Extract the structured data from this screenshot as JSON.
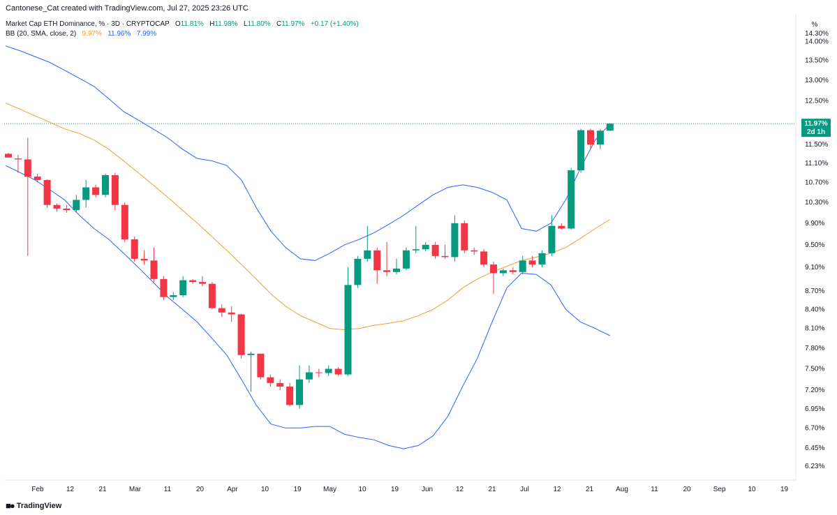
{
  "header": {
    "credit": "Cantonese_Cat created with TradingView.com, Jul 27, 2025 23:26 UTC",
    "symbol": "Market Cap ETH Dominance, % · 3D · CRYPTOCAP",
    "o_label": "O",
    "o_value": "11.81%",
    "h_label": "H",
    "h_value": "11.98%",
    "l_label": "L",
    "l_value": "11.80%",
    "c_label": "C",
    "c_value": "11.97%",
    "change": "+0.17 (+1.40%)",
    "indicator": "BB (20, SMA, close, 2)",
    "bb_mid": "9.97%",
    "bb_upper": "11.96%",
    "bb_lower": "7.99%"
  },
  "scale_button": "%",
  "footer": {
    "logo_icon": "tradingview-logo-icon",
    "logo_text": "TradingView"
  },
  "colors": {
    "up": "#089981",
    "down": "#f23645",
    "basis": "#f59d2a",
    "bands": "#2962ff"
  },
  "chart_data": {
    "type": "candlestick",
    "y_axis": {
      "ticks": [
        "14.30%",
        "14.00%",
        "13.50%",
        "13.00%",
        "12.50%",
        "11.50%",
        "11.10%",
        "10.70%",
        "10.30%",
        "9.90%",
        "9.50%",
        "9.10%",
        "8.70%",
        "8.40%",
        "8.10%",
        "7.80%",
        "7.50%",
        "7.20%",
        "6.95%",
        "6.70%",
        "6.45%",
        "6.23%"
      ],
      "scale": "log",
      "range": [
        6.1,
        14.6
      ]
    },
    "x_axis": {
      "ticks": [
        "Feb",
        "12",
        "21",
        "Mar",
        "11",
        "20",
        "Apr",
        "10",
        "19",
        "May",
        "10",
        "19",
        "Jun",
        "12",
        "21",
        "Jul",
        "12",
        "21",
        "Aug",
        "11",
        "20",
        "Sep",
        "10",
        "19"
      ]
    },
    "last_price": {
      "value": 11.97,
      "label": "11.97%",
      "countdown": "2d 1h"
    },
    "candles": [
      {
        "o": 11.3,
        "h": 11.32,
        "l": 11.22,
        "c": 11.22
      },
      {
        "o": 11.2,
        "h": 11.28,
        "l": 10.9,
        "c": 11.18
      },
      {
        "o": 11.18,
        "h": 11.65,
        "l": 9.3,
        "c": 10.82
      },
      {
        "o": 10.82,
        "h": 10.88,
        "l": 10.7,
        "c": 10.75
      },
      {
        "o": 10.75,
        "h": 10.76,
        "l": 10.2,
        "c": 10.25
      },
      {
        "o": 10.25,
        "h": 10.28,
        "l": 10.12,
        "c": 10.18
      },
      {
        "o": 10.18,
        "h": 10.25,
        "l": 10.1,
        "c": 10.15
      },
      {
        "o": 10.15,
        "h": 10.45,
        "l": 10.1,
        "c": 10.35
      },
      {
        "o": 10.35,
        "h": 10.75,
        "l": 10.2,
        "c": 10.6
      },
      {
        "o": 10.6,
        "h": 10.65,
        "l": 10.4,
        "c": 10.45
      },
      {
        "o": 10.45,
        "h": 10.88,
        "l": 10.4,
        "c": 10.85
      },
      {
        "o": 10.85,
        "h": 10.9,
        "l": 10.15,
        "c": 10.25
      },
      {
        "o": 10.25,
        "h": 10.3,
        "l": 9.55,
        "c": 9.6
      },
      {
        "o": 9.6,
        "h": 9.65,
        "l": 9.2,
        "c": 9.25
      },
      {
        "o": 9.25,
        "h": 9.4,
        "l": 9.15,
        "c": 9.22
      },
      {
        "o": 9.22,
        "h": 9.45,
        "l": 8.85,
        "c": 8.9
      },
      {
        "o": 8.9,
        "h": 8.95,
        "l": 8.55,
        "c": 8.6
      },
      {
        "o": 8.6,
        "h": 8.68,
        "l": 8.55,
        "c": 8.63
      },
      {
        "o": 8.63,
        "h": 8.95,
        "l": 8.6,
        "c": 8.88
      },
      {
        "o": 8.88,
        "h": 8.9,
        "l": 8.82,
        "c": 8.85
      },
      {
        "o": 8.85,
        "h": 8.95,
        "l": 8.78,
        "c": 8.82
      },
      {
        "o": 8.82,
        "h": 8.85,
        "l": 8.4,
        "c": 8.42
      },
      {
        "o": 8.42,
        "h": 8.48,
        "l": 8.28,
        "c": 8.35
      },
      {
        "o": 8.35,
        "h": 8.45,
        "l": 8.2,
        "c": 8.32
      },
      {
        "o": 8.32,
        "h": 8.33,
        "l": 7.65,
        "c": 7.7
      },
      {
        "o": 7.7,
        "h": 7.75,
        "l": 7.18,
        "c": 7.72
      },
      {
        "o": 7.72,
        "h": 7.72,
        "l": 7.35,
        "c": 7.38
      },
      {
        "o": 7.38,
        "h": 7.42,
        "l": 7.25,
        "c": 7.3
      },
      {
        "o": 7.3,
        "h": 7.35,
        "l": 7.2,
        "c": 7.25
      },
      {
        "o": 7.25,
        "h": 7.3,
        "l": 6.98,
        "c": 7.0
      },
      {
        "o": 7.0,
        "h": 7.55,
        "l": 6.95,
        "c": 7.35
      },
      {
        "o": 7.35,
        "h": 7.55,
        "l": 7.3,
        "c": 7.45
      },
      {
        "o": 7.45,
        "h": 7.5,
        "l": 7.38,
        "c": 7.44
      },
      {
        "o": 7.44,
        "h": 7.55,
        "l": 7.4,
        "c": 7.5
      },
      {
        "o": 7.5,
        "h": 7.52,
        "l": 7.4,
        "c": 7.42
      },
      {
        "o": 7.42,
        "h": 9.1,
        "l": 7.4,
        "c": 8.8
      },
      {
        "o": 8.8,
        "h": 9.3,
        "l": 8.75,
        "c": 9.25
      },
      {
        "o": 9.25,
        "h": 9.85,
        "l": 9.2,
        "c": 9.4
      },
      {
        "o": 9.4,
        "h": 9.45,
        "l": 8.82,
        "c": 9.05
      },
      {
        "o": 9.05,
        "h": 9.55,
        "l": 8.95,
        "c": 9.02
      },
      {
        "o": 9.02,
        "h": 9.25,
        "l": 8.98,
        "c": 9.08
      },
      {
        "o": 9.08,
        "h": 9.45,
        "l": 9.05,
        "c": 9.4
      },
      {
        "o": 9.4,
        "h": 9.85,
        "l": 9.35,
        "c": 9.42
      },
      {
        "o": 9.42,
        "h": 9.55,
        "l": 9.38,
        "c": 9.5
      },
      {
        "o": 9.5,
        "h": 9.55,
        "l": 9.25,
        "c": 9.3
      },
      {
        "o": 9.3,
        "h": 9.5,
        "l": 9.25,
        "c": 9.28
      },
      {
        "o": 9.28,
        "h": 10.05,
        "l": 9.2,
        "c": 9.9
      },
      {
        "o": 9.9,
        "h": 9.95,
        "l": 9.35,
        "c": 9.4
      },
      {
        "o": 9.4,
        "h": 9.45,
        "l": 9.32,
        "c": 9.38
      },
      {
        "o": 9.38,
        "h": 9.42,
        "l": 9.1,
        "c": 9.15
      },
      {
        "o": 9.15,
        "h": 9.2,
        "l": 8.65,
        "c": 9.0
      },
      {
        "o": 9.0,
        "h": 9.08,
        "l": 8.95,
        "c": 9.05
      },
      {
        "o": 9.05,
        "h": 9.1,
        "l": 8.98,
        "c": 9.02
      },
      {
        "o": 9.02,
        "h": 9.3,
        "l": 8.98,
        "c": 9.22
      },
      {
        "o": 9.22,
        "h": 9.3,
        "l": 9.1,
        "c": 9.15
      },
      {
        "o": 9.15,
        "h": 9.4,
        "l": 9.1,
        "c": 9.35
      },
      {
        "o": 9.35,
        "h": 10.05,
        "l": 9.3,
        "c": 9.85
      },
      {
        "o": 9.85,
        "h": 9.9,
        "l": 9.78,
        "c": 9.8
      },
      {
        "o": 9.8,
        "h": 11.0,
        "l": 9.78,
        "c": 10.95
      },
      {
        "o": 10.95,
        "h": 11.85,
        "l": 10.9,
        "c": 11.82
      },
      {
        "o": 11.82,
        "h": 11.85,
        "l": 11.4,
        "c": 11.5
      },
      {
        "o": 11.5,
        "h": 11.85,
        "l": 11.4,
        "c": 11.81
      },
      {
        "o": 11.81,
        "h": 11.98,
        "l": 11.8,
        "c": 11.97
      }
    ],
    "bb_upper": [
      13.88,
      13.75,
      13.6,
      13.45,
      13.25,
      13.05,
      12.85,
      12.55,
      12.25,
      12.05,
      11.85,
      11.65,
      11.4,
      11.2,
      11.15,
      11.05,
      10.75,
      10.2,
      9.75,
      9.45,
      9.25,
      9.22,
      9.35,
      9.5,
      9.6,
      9.72,
      9.88,
      10.05,
      10.25,
      10.45,
      10.6,
      10.65,
      10.6,
      10.5,
      10.35,
      9.8,
      9.75,
      9.9,
      10.35,
      11.0,
      11.6,
      11.96
    ],
    "bb_mid": [
      12.45,
      12.3,
      12.15,
      12.0,
      11.85,
      11.75,
      11.6,
      11.4,
      11.15,
      10.9,
      10.65,
      10.4,
      10.15,
      9.9,
      9.65,
      9.4,
      9.15,
      8.9,
      8.65,
      8.45,
      8.3,
      8.2,
      8.1,
      8.08,
      8.1,
      8.15,
      8.18,
      8.22,
      8.3,
      8.4,
      8.55,
      8.75,
      8.9,
      9.02,
      9.12,
      9.22,
      9.28,
      9.35,
      9.45,
      9.62,
      9.8,
      9.97
    ],
    "bb_lower": [
      11.05,
      10.9,
      10.75,
      10.55,
      10.35,
      10.05,
      9.8,
      9.6,
      9.35,
      9.1,
      8.85,
      8.6,
      8.4,
      8.2,
      7.95,
      7.7,
      7.35,
      7.0,
      6.75,
      6.7,
      6.7,
      6.72,
      6.72,
      6.62,
      6.58,
      6.55,
      6.48,
      6.44,
      6.48,
      6.6,
      6.85,
      7.25,
      7.65,
      8.2,
      8.75,
      9.0,
      8.98,
      8.8,
      8.4,
      8.2,
      8.1,
      7.99
    ]
  }
}
